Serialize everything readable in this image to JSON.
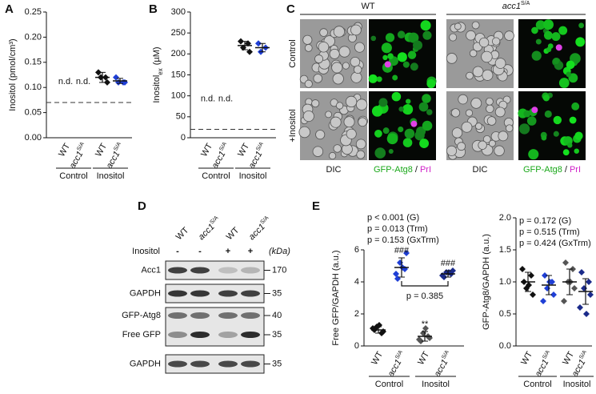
{
  "chart_data": [
    {
      "type": "strip",
      "panel": "A",
      "ylabel": "Inositol (pmol/cm³)",
      "categories": [
        "WT",
        "acc1",
        "WT",
        "acc1"
      ],
      "superscripts": [
        null,
        "S/A",
        null,
        "S/A"
      ],
      "group_labels": [
        "Control",
        "Inositol"
      ],
      "colors": [
        "#111111",
        "#1f3fd6",
        "#111111",
        "#1f3fd6"
      ],
      "values": [
        null,
        null,
        [
          0.13,
          0.12,
          0.12,
          0.11
        ],
        [
          0.12,
          0.11,
          0.11,
          0.11
        ]
      ],
      "means": [
        null,
        null,
        0.12,
        0.113
      ],
      "errors": [
        null,
        null,
        0.01,
        0.005
      ],
      "annotations": [
        "n.d.",
        "n.d.",
        null,
        null
      ],
      "detection_limit": 0.07,
      "ylim": [
        0,
        0.25
      ],
      "yticks": [
        {
          "value": 0,
          "label": "0.00"
        },
        {
          "value": 0.05,
          "label": "0.05"
        },
        {
          "value": 0.1,
          "label": "0.10"
        },
        {
          "value": 0.15,
          "label": "0.15"
        },
        {
          "value": 0.2,
          "label": "0.20"
        },
        {
          "value": 0.25,
          "label": "0.25"
        }
      ]
    },
    {
      "type": "strip",
      "panel": "B",
      "ylabel": "Inositol",
      "ylabel_sub": "ex",
      "ylabel_unit": "(µM)",
      "categories": [
        "WT",
        "acc1",
        "WT",
        "acc1"
      ],
      "superscripts": [
        null,
        "S/A",
        null,
        "S/A"
      ],
      "group_labels": [
        "Control",
        "Inositol"
      ],
      "colors": [
        "#111111",
        "#1f3fd6",
        "#111111",
        "#1f3fd6"
      ],
      "values": [
        null,
        null,
        [
          230,
          225,
          215,
          205
        ],
        [
          225,
          215,
          205
        ]
      ],
      "means": [
        null,
        null,
        220,
        215
      ],
      "errors": [
        null,
        null,
        10,
        10
      ],
      "annotations": [
        "n.d.",
        "n.d.",
        null,
        null
      ],
      "detection_limit": 20,
      "ylim": [
        0,
        300
      ],
      "yticks": [
        0,
        50,
        100,
        150,
        200,
        250,
        300
      ]
    },
    {
      "type": "strip",
      "panel": "E",
      "ylabel": "Free GFP/GAPDH (a.u.)",
      "categories": [
        "WT",
        "acc1",
        "WT",
        "acc1"
      ],
      "superscripts": [
        null,
        "S/A",
        null,
        "S/A"
      ],
      "group_labels": [
        "Control",
        "Inositol"
      ],
      "colors": [
        "#111111",
        "#1f3fd6",
        "#555555",
        "#1a2a8a"
      ],
      "values": [
        [
          1.0,
          0.8,
          1.2,
          0.9,
          1.1,
          1.3
        ],
        [
          4.2,
          4.8,
          5.2,
          5.8,
          4.5,
          4.9
        ],
        [
          0.3,
          0.6,
          0.8,
          0.5,
          0.4,
          1.1
        ],
        [
          4.3,
          4.5,
          4.6,
          4.7,
          4.4,
          4.6
        ]
      ],
      "means": [
        1.0,
        4.9,
        0.6,
        4.5
      ],
      "errors": [
        0.2,
        0.6,
        0.3,
        0.2
      ],
      "sig_labels": [
        null,
        "###",
        "**",
        "###"
      ],
      "comparison": {
        "label": "p = 0.385"
      },
      "stats": [
        "p < 0.001 (G)",
        "p = 0.013 (Trm)",
        "p = 0.153 (GxTrm)"
      ],
      "ylim": [
        0,
        6
      ],
      "yticks": [
        0,
        2,
        4,
        6
      ]
    },
    {
      "type": "strip",
      "ylabel": "GFP-Atg8/GAPDH (a.u.)",
      "categories": [
        "WT",
        "acc1",
        "WT",
        "acc1"
      ],
      "superscripts": [
        null,
        "S/A",
        null,
        "S/A"
      ],
      "group_labels": [
        "Control",
        "Inositol"
      ],
      "colors": [
        "#111111",
        "#1f3fd6",
        "#555555",
        "#1a2a8a"
      ],
      "values": [
        [
          1.0,
          1.1,
          0.9,
          0.8,
          1.2,
          0.95
        ],
        [
          1.1,
          1.0,
          0.9,
          0.8,
          0.7,
          1.0
        ],
        [
          1.3,
          1.2,
          1.0,
          0.9,
          0.7,
          1.0
        ],
        [
          1.15,
          1.0,
          0.9,
          0.8,
          0.6,
          0.5
        ]
      ],
      "means": [
        1.0,
        0.95,
        1.0,
        0.85
      ],
      "errors": [
        0.15,
        0.15,
        0.2,
        0.2
      ],
      "stats": [
        "p = 0.172 (G)",
        "p = 0.515 (Trm)",
        "p = 0.424 (GxTrm)"
      ],
      "ylim": [
        0,
        2
      ],
      "yticks": [
        {
          "value": 0,
          "label": "0.0"
        },
        {
          "value": 0.5,
          "label": "0.5"
        },
        {
          "value": 1,
          "label": "1.0"
        },
        {
          "value": 1.5,
          "label": "1.5"
        },
        {
          "value": 2,
          "label": "2.0"
        }
      ]
    }
  ],
  "panel_c": {
    "letter": "C",
    "strains": [
      {
        "name": "WT"
      },
      {
        "name": "acc1",
        "sup": "S/A"
      }
    ],
    "rows": [
      "Control",
      "+Inositol"
    ],
    "channels": {
      "dic": "DIC",
      "gfp": "GFP-Atg8",
      "sep": "/",
      "pi": "PrI"
    }
  },
  "panel_d": {
    "letter": "D",
    "lanes": [
      {
        "strain": "WT",
        "inositol": "-"
      },
      {
        "strain": "acc1",
        "sup": "S/A",
        "inositol": "-"
      },
      {
        "strain": "WT",
        "inositol": "+"
      },
      {
        "strain": "acc1",
        "sup": "S/A",
        "inositol": "+"
      }
    ],
    "treatment": "Inositol",
    "unit": "(kDa)",
    "blots": [
      {
        "label": "Acc1",
        "marker": 170
      },
      {
        "label": "GAPDH",
        "marker": 35
      },
      {
        "label": "GFP-Atg8",
        "marker": 40
      },
      {
        "label": "Free GFP",
        "marker": 35
      },
      {
        "label": "GAPDH",
        "marker": 35
      }
    ]
  }
}
